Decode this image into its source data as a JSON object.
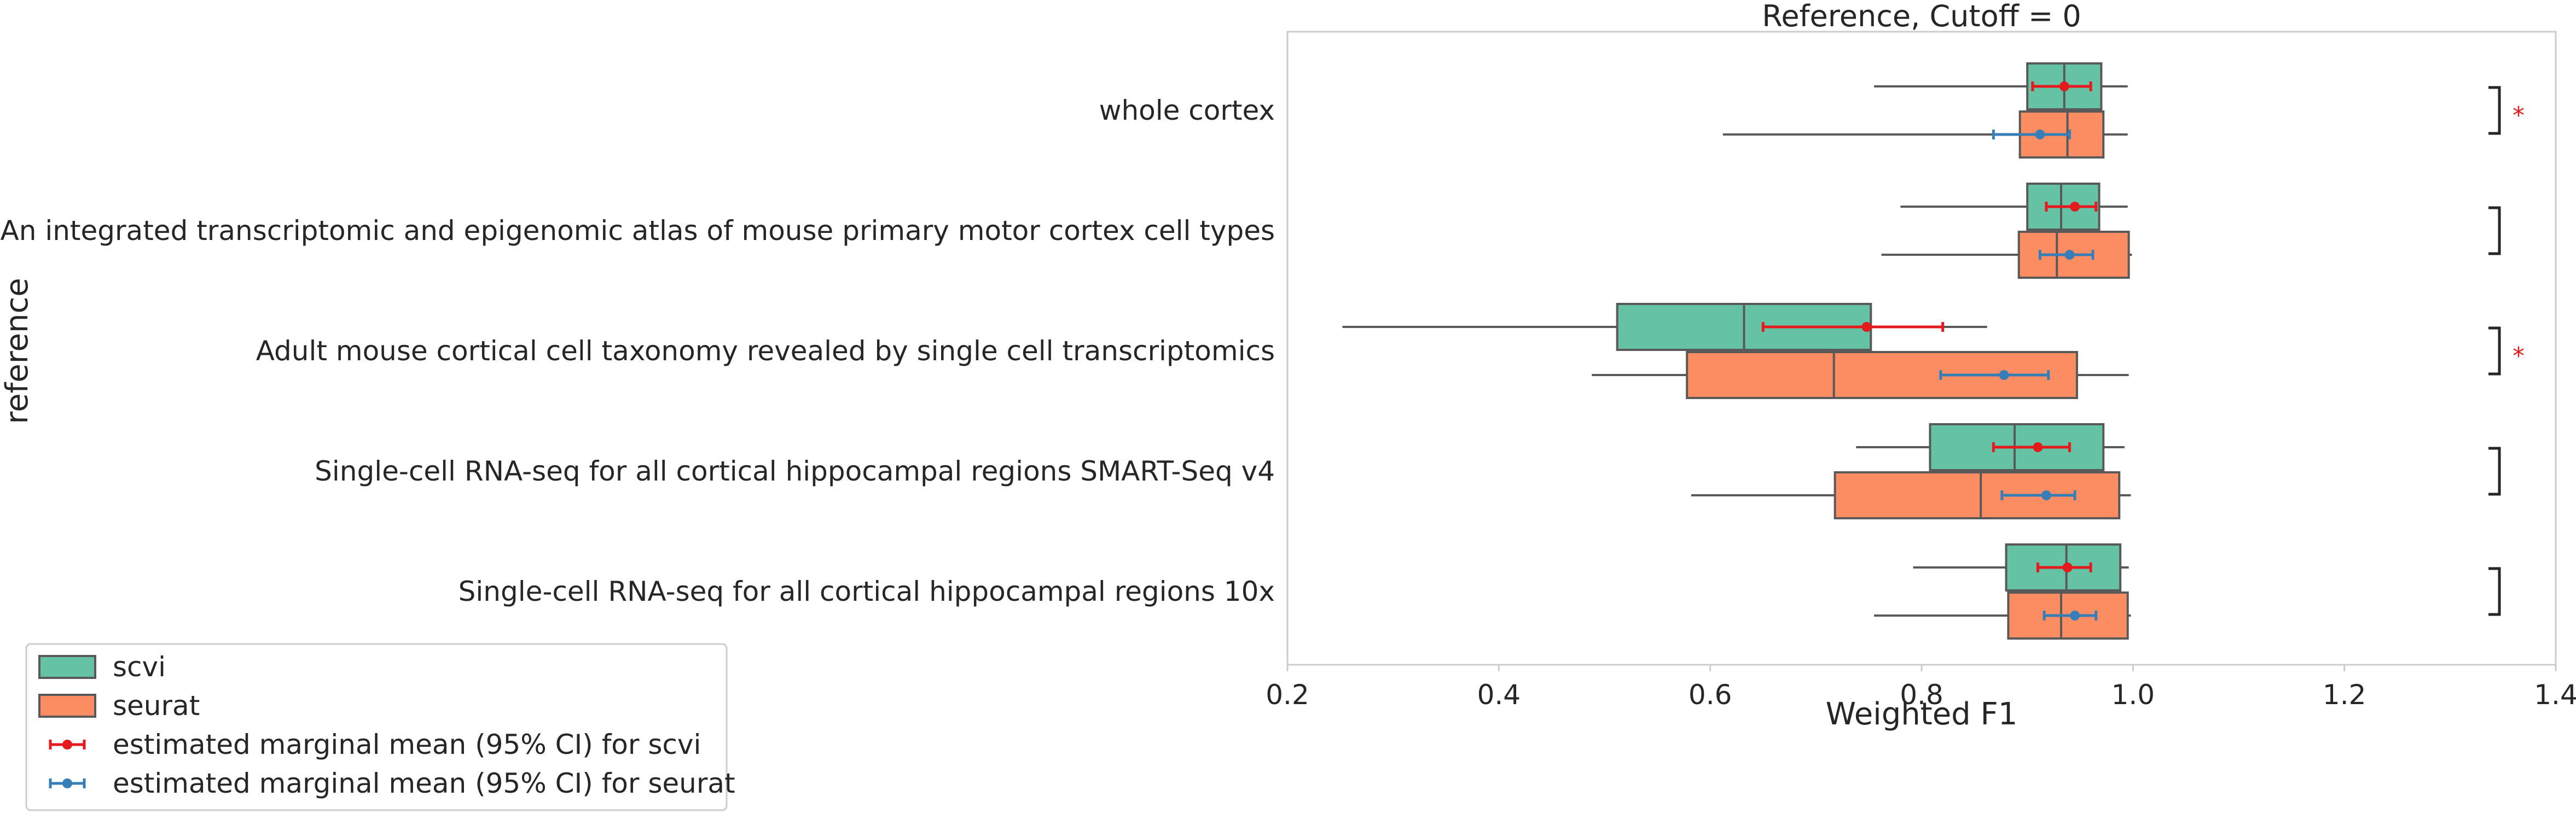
{
  "chart_data": {
    "type": "boxplot",
    "title": "Reference, Cutoff = 0",
    "xlabel": "Weighted F1",
    "ylabel": "reference",
    "xlim": [
      0.2,
      1.4
    ],
    "xticks": [
      0.2,
      0.4,
      0.6,
      0.8,
      1.0,
      1.2,
      1.4
    ],
    "xtick_labels": [
      "0.2",
      "0.4",
      "0.6",
      "0.8",
      "1.0",
      "1.2",
      "1.4"
    ],
    "grid": false,
    "legend_position": "bottom-left (outside plot)",
    "categories": [
      "whole cortex",
      "An integrated transcriptomic and epigenomic atlas of mouse primary motor cortex cell types",
      "Adult mouse cortical cell taxonomy revealed by single cell transcriptomics",
      "Single-cell RNA-seq for all cortical  hippocampal regions SMART-Seq v4",
      "Single-cell RNA-seq for all cortical  hippocampal regions 10x"
    ],
    "series": [
      {
        "name": "scvi",
        "color": "#66c2a5",
        "boxes": [
          {
            "whislo": 0.755,
            "q1": 0.9,
            "med": 0.935,
            "q3": 0.97,
            "whishi": 0.995
          },
          {
            "whislo": 0.78,
            "q1": 0.9,
            "med": 0.932,
            "q3": 0.968,
            "whishi": 0.995
          },
          {
            "whislo": 0.252,
            "q1": 0.512,
            "med": 0.632,
            "q3": 0.752,
            "whishi": 0.862
          },
          {
            "whislo": 0.738,
            "q1": 0.808,
            "med": 0.888,
            "q3": 0.972,
            "whishi": 0.992
          },
          {
            "whislo": 0.792,
            "q1": 0.88,
            "med": 0.937,
            "q3": 0.988,
            "whishi": 0.996
          }
        ],
        "emm": [
          {
            "mean": 0.935,
            "lo": 0.905,
            "hi": 0.96
          },
          {
            "mean": 0.945,
            "lo": 0.918,
            "hi": 0.965
          },
          {
            "mean": 0.748,
            "lo": 0.65,
            "hi": 0.82
          },
          {
            "mean": 0.91,
            "lo": 0.868,
            "hi": 0.94
          },
          {
            "mean": 0.938,
            "lo": 0.91,
            "hi": 0.96
          }
        ]
      },
      {
        "name": "seurat",
        "color": "#fc8d62",
        "boxes": [
          {
            "whislo": 0.612,
            "q1": 0.893,
            "med": 0.938,
            "q3": 0.972,
            "whishi": 0.995
          },
          {
            "whislo": 0.762,
            "q1": 0.892,
            "med": 0.928,
            "q3": 0.996,
            "whishi": 0.999
          },
          {
            "whislo": 0.488,
            "q1": 0.578,
            "med": 0.717,
            "q3": 0.947,
            "whishi": 0.996
          },
          {
            "whislo": 0.582,
            "q1": 0.718,
            "med": 0.856,
            "q3": 0.987,
            "whishi": 0.998
          },
          {
            "whislo": 0.755,
            "q1": 0.882,
            "med": 0.932,
            "q3": 0.995,
            "whishi": 0.998
          }
        ],
        "emm": [
          {
            "mean": 0.912,
            "lo": 0.868,
            "hi": 0.94
          },
          {
            "mean": 0.94,
            "lo": 0.912,
            "hi": 0.962
          },
          {
            "mean": 0.878,
            "lo": 0.818,
            "hi": 0.92
          },
          {
            "mean": 0.918,
            "lo": 0.876,
            "hi": 0.945
          },
          {
            "mean": 0.945,
            "lo": 0.916,
            "hi": 0.965
          }
        ]
      }
    ],
    "significance": [
      "*",
      "",
      "*",
      "",
      ""
    ],
    "legend_entries": [
      {
        "label": "scvi",
        "kind": "box",
        "color": "#66c2a5"
      },
      {
        "label": "seurat",
        "kind": "box",
        "color": "#fc8d62"
      },
      {
        "label": "estimated marginal mean (95% CI) for scvi",
        "kind": "errorbar",
        "color": "#e41a1c"
      },
      {
        "label": "estimated marginal mean (95% CI) for seurat",
        "kind": "errorbar",
        "color": "#377eb8"
      }
    ],
    "colors": {
      "box_edge": "#595959",
      "emm_scvi": "#e41a1c",
      "emm_seurat": "#377eb8",
      "significance": "#e41a1c",
      "axes_edge": "#cccccc"
    }
  }
}
